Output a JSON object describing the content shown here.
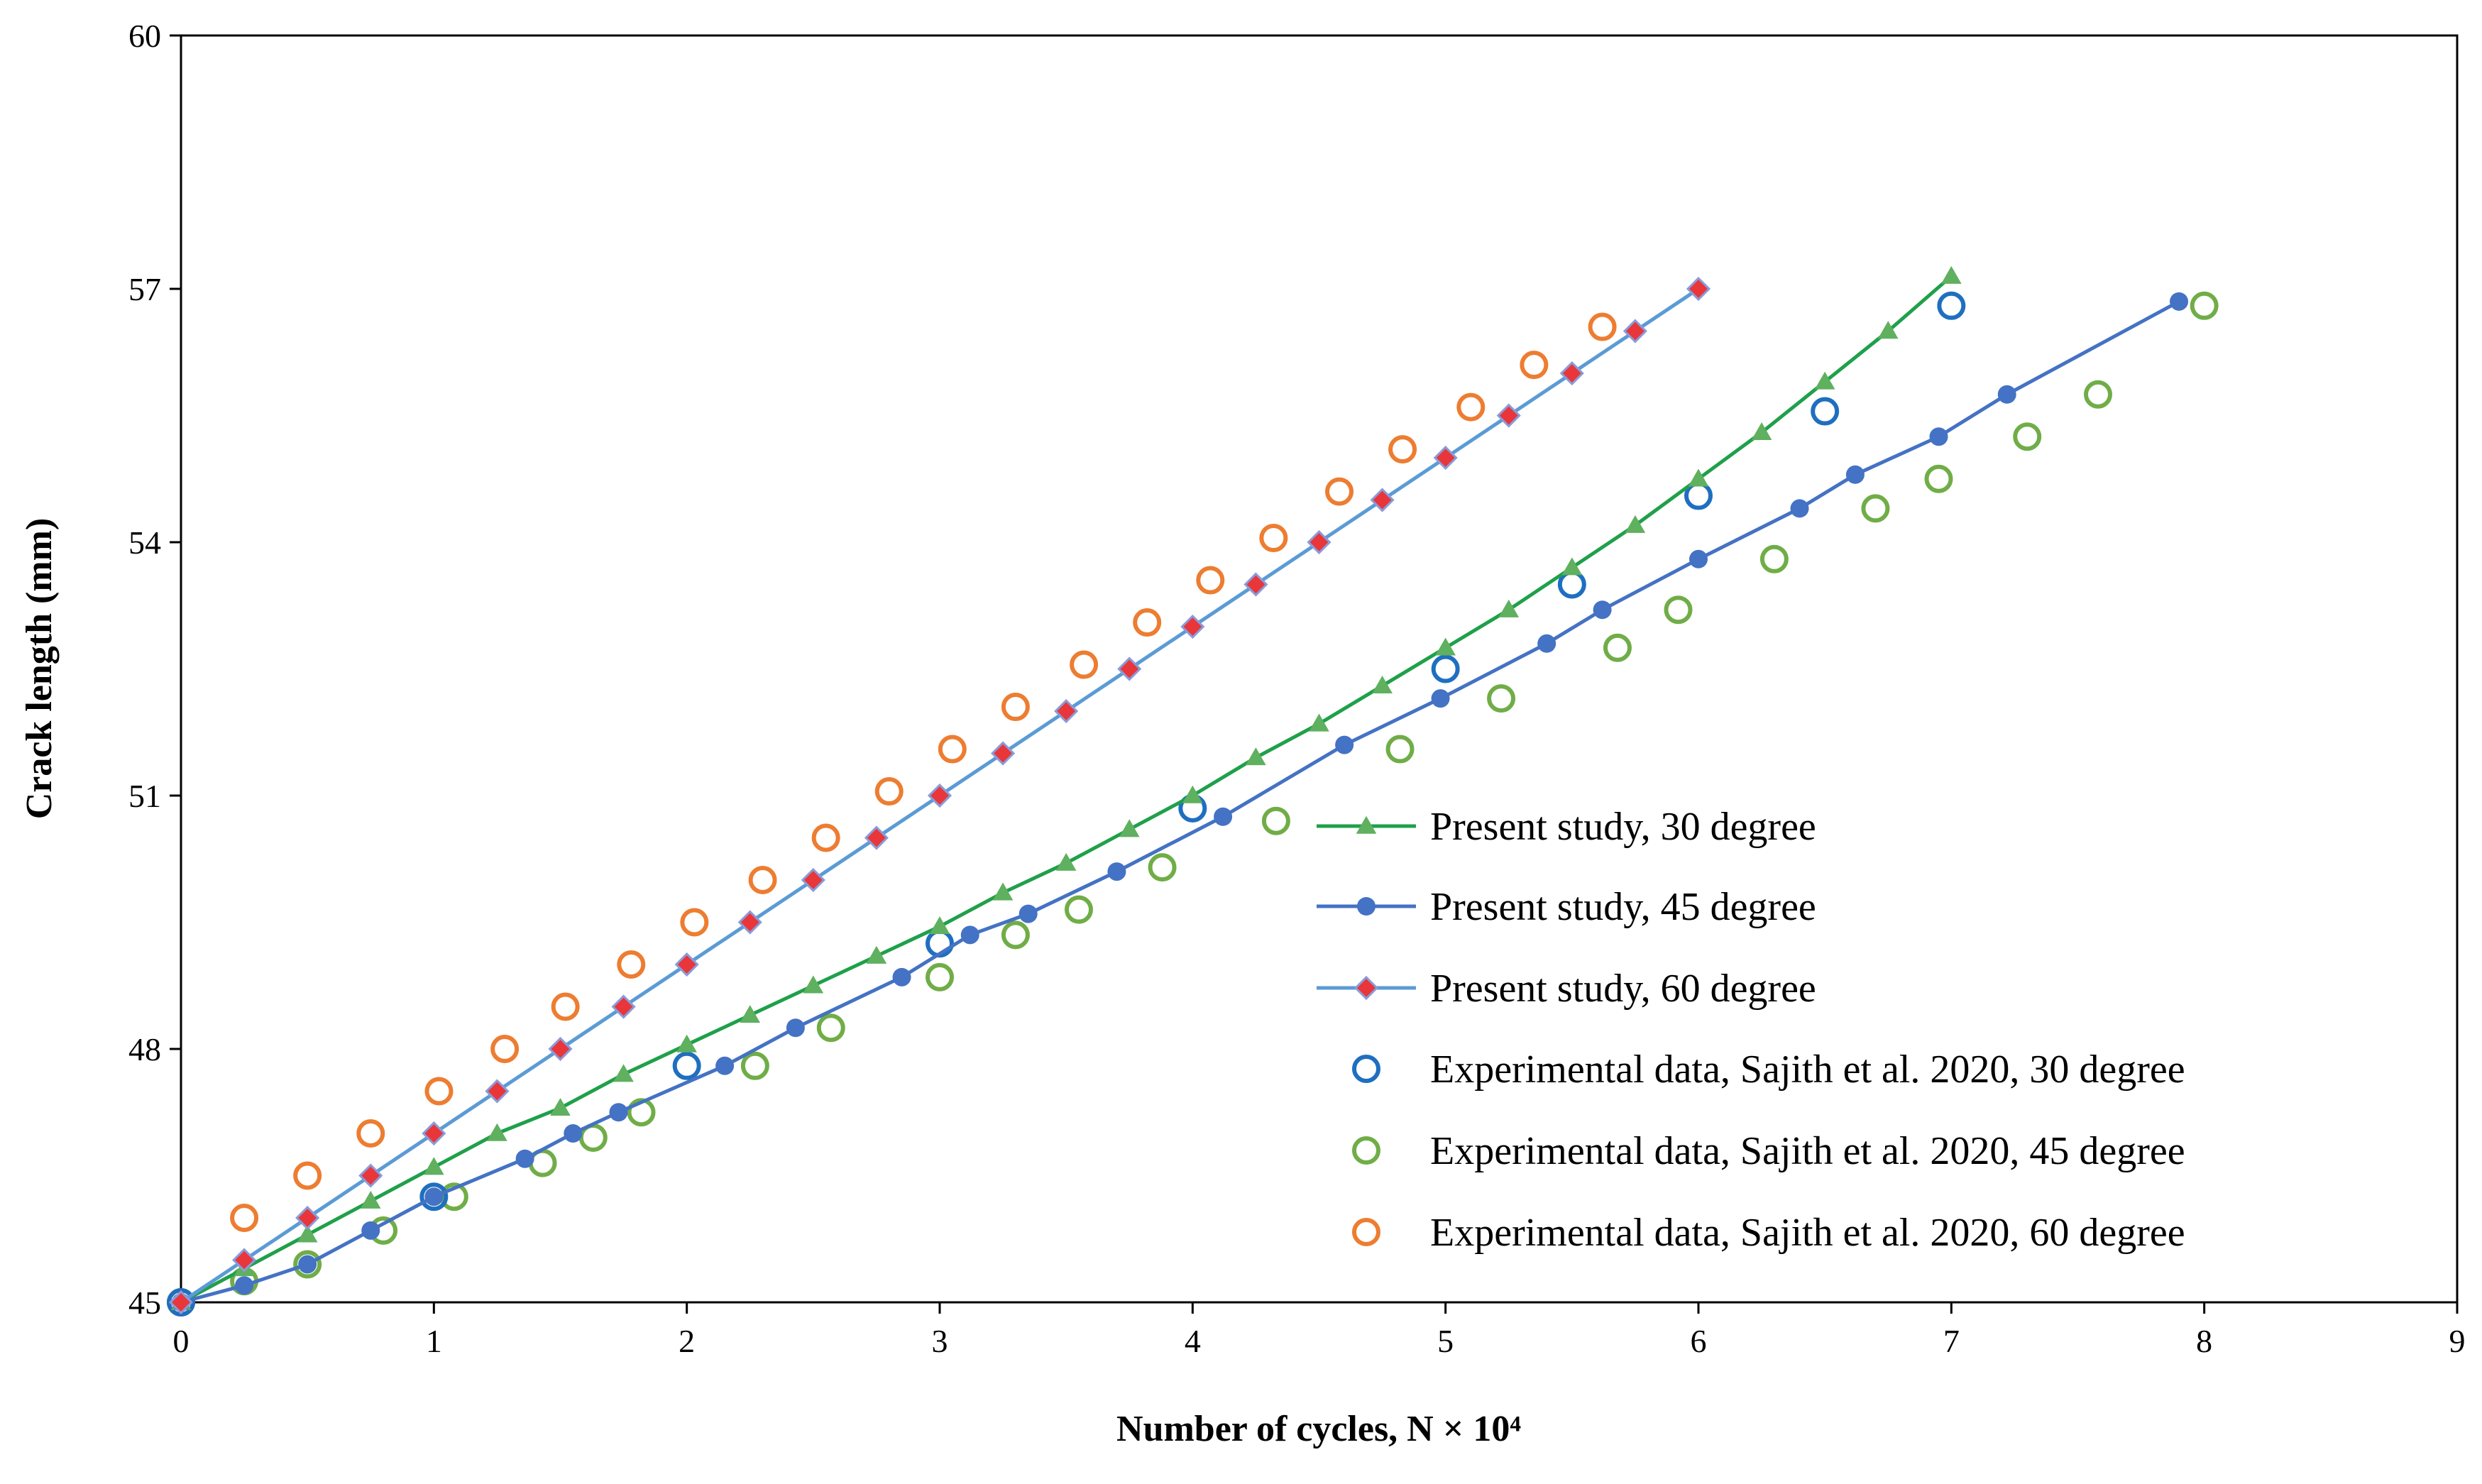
{
  "chart_data": {
    "type": "scatter",
    "xlabel": "Number of cycles, N × 10⁴",
    "ylabel": "Crack length (mm)",
    "xlim": [
      0,
      9
    ],
    "ylim": [
      45,
      60
    ],
    "xticks": [
      0,
      1,
      2,
      3,
      4,
      5,
      6,
      7,
      8,
      9
    ],
    "yticks": [
      45,
      48,
      51,
      54,
      57,
      60
    ],
    "grid": false,
    "legend_position": "lower-right",
    "series": [
      {
        "name": "Present study, 30 degree",
        "kind": "line-marker",
        "marker": "triangle",
        "line_color": "#1fa04a",
        "marker_color": "#5fb05f",
        "x": [
          0,
          0.25,
          0.5,
          0.75,
          1.0,
          1.25,
          1.5,
          1.75,
          2.0,
          2.25,
          2.5,
          2.75,
          3.0,
          3.25,
          3.5,
          3.75,
          4.0,
          4.25,
          4.5,
          4.75,
          5.0,
          5.25,
          5.5,
          5.75,
          6.0,
          6.25,
          6.5,
          6.75,
          7.0
        ],
        "y": [
          45.0,
          45.4,
          45.8,
          46.2,
          46.6,
          47.0,
          47.3,
          47.7,
          48.05,
          48.4,
          48.75,
          49.1,
          49.45,
          49.85,
          50.2,
          50.6,
          51.0,
          51.45,
          51.85,
          52.3,
          52.75,
          53.2,
          53.7,
          54.2,
          54.75,
          55.3,
          55.9,
          56.5,
          57.15
        ]
      },
      {
        "name": "Present study, 45 degree",
        "kind": "line-marker",
        "marker": "circle",
        "line_color": "#4472c4",
        "marker_color": "#4472c4",
        "x": [
          0,
          0.25,
          0.5,
          0.75,
          1.0,
          1.36,
          1.55,
          1.73,
          2.15,
          2.43,
          2.85,
          3.12,
          3.35,
          3.7,
          4.12,
          4.6,
          4.98,
          5.4,
          5.62,
          6.0,
          6.4,
          6.62,
          6.95,
          7.22,
          7.9
        ],
        "y": [
          45.0,
          45.2,
          45.45,
          45.85,
          46.25,
          46.7,
          47.0,
          47.25,
          47.8,
          48.25,
          48.85,
          49.35,
          49.6,
          50.1,
          50.75,
          51.6,
          52.15,
          52.8,
          53.2,
          53.8,
          54.4,
          54.8,
          55.25,
          55.75,
          56.85
        ]
      },
      {
        "name": "Present study, 60 degree",
        "kind": "line-marker",
        "marker": "diamond",
        "line_color": "#5b9bd5",
        "marker_color": "#e8363a",
        "x": [
          0,
          0.25,
          0.5,
          0.75,
          1.0,
          1.25,
          1.5,
          1.75,
          2.0,
          2.25,
          2.5,
          2.75,
          3.0,
          3.25,
          3.5,
          3.75,
          4.0,
          4.25,
          4.5,
          4.75,
          5.0,
          5.25,
          5.5,
          5.75,
          6.0
        ],
        "y": [
          45.0,
          45.5,
          46.0,
          46.5,
          47.0,
          47.5,
          48.0,
          48.5,
          49.0,
          49.5,
          50.0,
          50.5,
          51.0,
          51.5,
          52.0,
          52.5,
          53.0,
          53.5,
          54.0,
          54.5,
          55.0,
          55.5,
          56.0,
          56.5,
          57.0
        ]
      },
      {
        "name": "Experimental data, Sajith et al. 2020, 30 degree",
        "kind": "open-circle",
        "marker_color": "#1f6fc0",
        "x": [
          0,
          1.0,
          2.0,
          3.0,
          4.0,
          5.0,
          5.5,
          6.0,
          6.5,
          7.0
        ],
        "y": [
          45.0,
          46.25,
          47.8,
          49.25,
          50.85,
          52.5,
          53.5,
          54.55,
          55.55,
          56.8
        ]
      },
      {
        "name": "Experimental data, Sajith et al. 2020, 45 degree",
        "kind": "open-circle",
        "marker_color": "#70ad47",
        "x": [
          0,
          0.25,
          0.5,
          0.8,
          1.08,
          1.43,
          1.63,
          1.82,
          2.27,
          2.57,
          3.0,
          3.3,
          3.55,
          3.88,
          4.33,
          4.82,
          5.22,
          5.68,
          5.92,
          6.3,
          6.7,
          6.95,
          7.3,
          7.58,
          8.0
        ],
        "y": [
          45.0,
          45.25,
          45.45,
          45.85,
          46.25,
          46.65,
          46.95,
          47.25,
          47.8,
          48.25,
          48.85,
          49.35,
          49.65,
          50.15,
          50.7,
          51.55,
          52.15,
          52.75,
          53.2,
          53.8,
          54.4,
          54.75,
          55.25,
          55.75,
          56.8
        ]
      },
      {
        "name": "Experimental data, Sajith et al. 2020, 60 degree",
        "kind": "open-circle",
        "marker_color": "#ed7d31",
        "x": [
          0,
          0.25,
          0.5,
          0.75,
          1.02,
          1.28,
          1.52,
          1.78,
          2.03,
          2.3,
          2.55,
          2.8,
          3.05,
          3.3,
          3.57,
          3.82,
          4.07,
          4.32,
          4.58,
          4.83,
          5.1,
          5.35,
          5.62
        ],
        "y": [
          45.0,
          46.0,
          46.5,
          47.0,
          47.5,
          48.0,
          48.5,
          49.0,
          49.5,
          50.0,
          50.5,
          51.05,
          51.55,
          52.05,
          52.55,
          53.05,
          53.55,
          54.05,
          54.6,
          55.1,
          55.6,
          56.1,
          56.55
        ]
      }
    ]
  }
}
